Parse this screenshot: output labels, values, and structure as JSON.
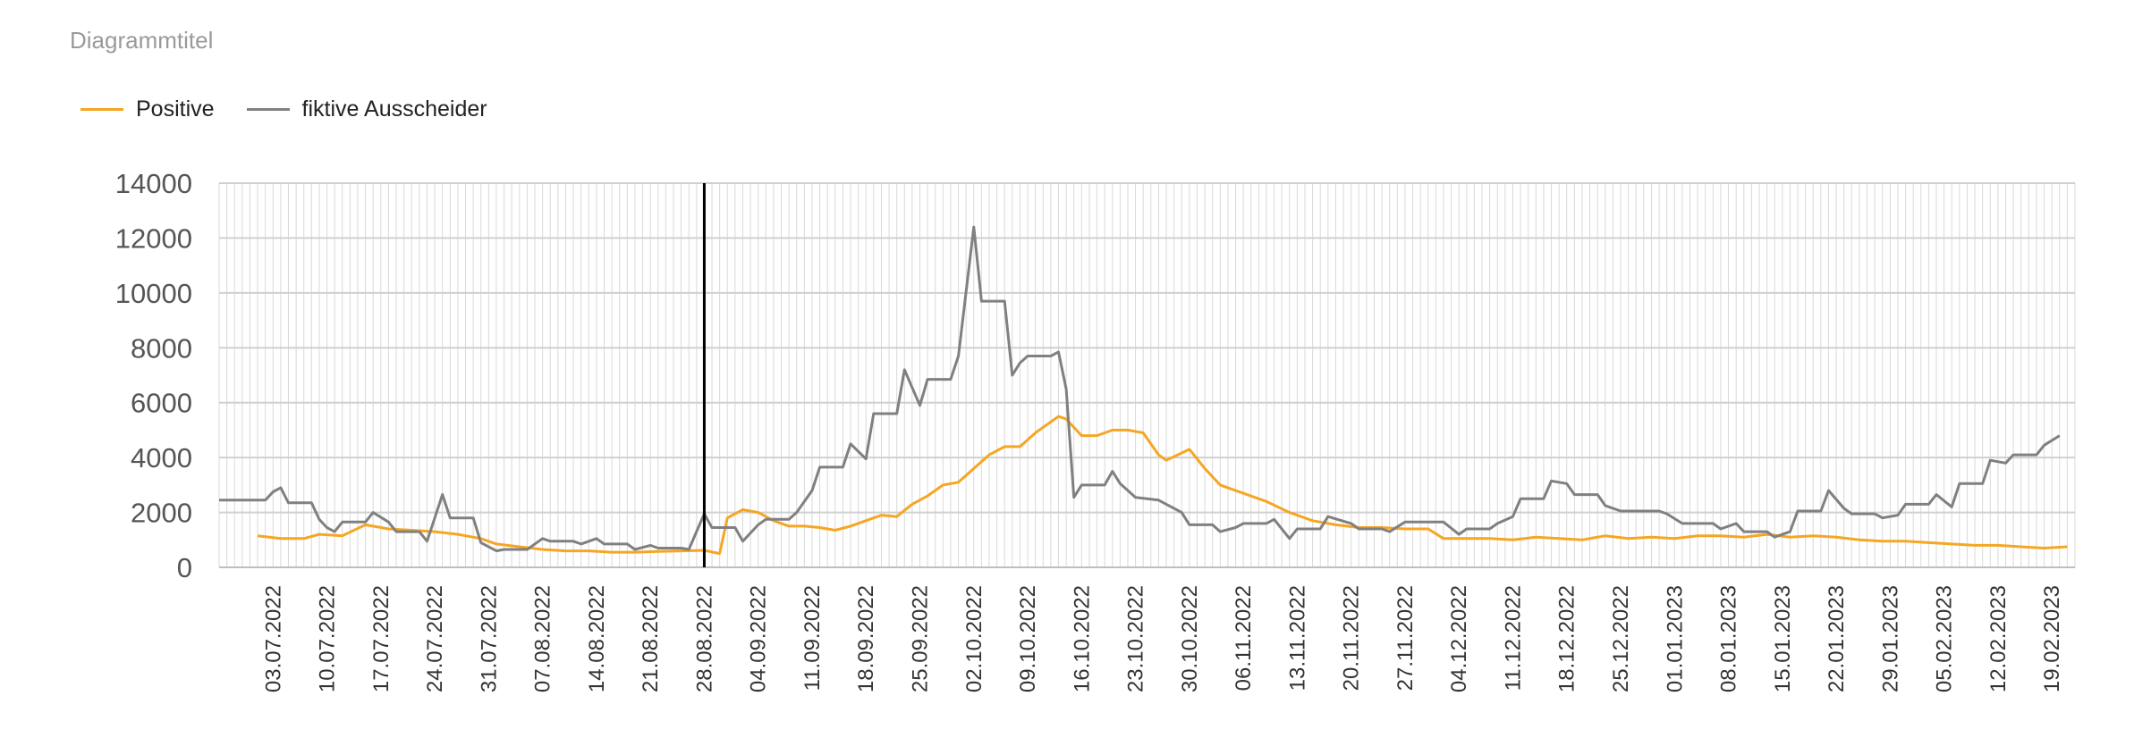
{
  "chart_data": {
    "type": "line",
    "title": "Diagrammtitel",
    "xlabel": "",
    "ylabel": "",
    "ylim": [
      0,
      14000
    ],
    "yticks": [
      0,
      2000,
      4000,
      6000,
      8000,
      10000,
      12000,
      14000
    ],
    "x_start": "2022-06-26",
    "x_end": "2023-02-22",
    "grid": true,
    "legend_position": "top-left",
    "tick_labels": [
      "03.07.2022",
      "10.07.2022",
      "17.07.2022",
      "24.07.2022",
      "31.07.2022",
      "07.08.2022",
      "14.08.2022",
      "21.08.2022",
      "28.08.2022",
      "04.09.2022",
      "11.09.2022",
      "18.09.2022",
      "25.09.2022",
      "02.10.2022",
      "09.10.2022",
      "16.10.2022",
      "23.10.2022",
      "30.10.2022",
      "06.11.2022",
      "13.11.2022",
      "20.11.2022",
      "27.11.2022",
      "04.12.2022",
      "11.12.2022",
      "18.12.2022",
      "25.12.2022",
      "01.01.2023",
      "08.01.2023",
      "15.01.2023",
      "22.01.2023",
      "29.01.2023",
      "05.02.2023",
      "12.02.2023",
      "19.02.2023"
    ],
    "marker_line_date": "2022-08-28",
    "series": [
      {
        "name": "Positive",
        "color": "#F5A623",
        "points": [
          [
            "2022-07-01",
            1150
          ],
          [
            "2022-07-04",
            1050
          ],
          [
            "2022-07-07",
            1050
          ],
          [
            "2022-07-09",
            1200
          ],
          [
            "2022-07-12",
            1150
          ],
          [
            "2022-07-15",
            1550
          ],
          [
            "2022-07-18",
            1400
          ],
          [
            "2022-07-21",
            1350
          ],
          [
            "2022-07-24",
            1300
          ],
          [
            "2022-07-27",
            1200
          ],
          [
            "2022-07-30",
            1050
          ],
          [
            "2022-08-01",
            850
          ],
          [
            "2022-08-04",
            750
          ],
          [
            "2022-08-07",
            650
          ],
          [
            "2022-08-10",
            600
          ],
          [
            "2022-08-13",
            600
          ],
          [
            "2022-08-16",
            550
          ],
          [
            "2022-08-19",
            550
          ],
          [
            "2022-08-22",
            580
          ],
          [
            "2022-08-25",
            600
          ],
          [
            "2022-08-28",
            620
          ],
          [
            "2022-08-30",
            500
          ],
          [
            "2022-08-31",
            1800
          ],
          [
            "2022-09-02",
            2100
          ],
          [
            "2022-09-04",
            2000
          ],
          [
            "2022-09-06",
            1700
          ],
          [
            "2022-09-08",
            1500
          ],
          [
            "2022-09-10",
            1500
          ],
          [
            "2022-09-12",
            1450
          ],
          [
            "2022-09-14",
            1350
          ],
          [
            "2022-09-16",
            1500
          ],
          [
            "2022-09-18",
            1700
          ],
          [
            "2022-09-20",
            1900
          ],
          [
            "2022-09-22",
            1850
          ],
          [
            "2022-09-24",
            2300
          ],
          [
            "2022-09-26",
            2600
          ],
          [
            "2022-09-28",
            3000
          ],
          [
            "2022-09-30",
            3100
          ],
          [
            "2022-10-02",
            3600
          ],
          [
            "2022-10-04",
            4100
          ],
          [
            "2022-10-06",
            4400
          ],
          [
            "2022-10-08",
            4400
          ],
          [
            "2022-10-10",
            4900
          ],
          [
            "2022-10-12",
            5300
          ],
          [
            "2022-10-13",
            5500
          ],
          [
            "2022-10-14",
            5400
          ],
          [
            "2022-10-16",
            4800
          ],
          [
            "2022-10-18",
            4800
          ],
          [
            "2022-10-20",
            5000
          ],
          [
            "2022-10-22",
            5000
          ],
          [
            "2022-10-24",
            4900
          ],
          [
            "2022-10-26",
            4100
          ],
          [
            "2022-10-27",
            3900
          ],
          [
            "2022-10-30",
            4300
          ],
          [
            "2022-11-01",
            3600
          ],
          [
            "2022-11-03",
            3000
          ],
          [
            "2022-11-06",
            2700
          ],
          [
            "2022-11-09",
            2400
          ],
          [
            "2022-11-12",
            2000
          ],
          [
            "2022-11-15",
            1700
          ],
          [
            "2022-11-18",
            1550
          ],
          [
            "2022-11-21",
            1450
          ],
          [
            "2022-11-24",
            1450
          ],
          [
            "2022-11-27",
            1400
          ],
          [
            "2022-11-30",
            1400
          ],
          [
            "2022-12-02",
            1050
          ],
          [
            "2022-12-05",
            1050
          ],
          [
            "2022-12-08",
            1050
          ],
          [
            "2022-12-11",
            1000
          ],
          [
            "2022-12-14",
            1100
          ],
          [
            "2022-12-17",
            1050
          ],
          [
            "2022-12-20",
            1000
          ],
          [
            "2022-12-23",
            1150
          ],
          [
            "2022-12-26",
            1050
          ],
          [
            "2022-12-29",
            1100
          ],
          [
            "2023-01-01",
            1050
          ],
          [
            "2023-01-04",
            1150
          ],
          [
            "2023-01-07",
            1150
          ],
          [
            "2023-01-10",
            1100
          ],
          [
            "2023-01-13",
            1200
          ],
          [
            "2023-01-16",
            1100
          ],
          [
            "2023-01-19",
            1150
          ],
          [
            "2023-01-22",
            1100
          ],
          [
            "2023-01-25",
            1000
          ],
          [
            "2023-01-28",
            950
          ],
          [
            "2023-01-31",
            950
          ],
          [
            "2023-02-03",
            900
          ],
          [
            "2023-02-06",
            850
          ],
          [
            "2023-02-09",
            800
          ],
          [
            "2023-02-12",
            800
          ],
          [
            "2023-02-15",
            750
          ],
          [
            "2023-02-18",
            700
          ],
          [
            "2023-02-21",
            750
          ]
        ]
      },
      {
        "name": "fiktive  Ausscheider",
        "color": "#808080",
        "points": [
          [
            "2022-06-26",
            2450
          ],
          [
            "2022-07-02",
            2450
          ],
          [
            "2022-07-03",
            2750
          ],
          [
            "2022-07-04",
            2900
          ],
          [
            "2022-07-05",
            2350
          ],
          [
            "2022-07-08",
            2350
          ],
          [
            "2022-07-09",
            1750
          ],
          [
            "2022-07-10",
            1450
          ],
          [
            "2022-07-11",
            1300
          ],
          [
            "2022-07-12",
            1650
          ],
          [
            "2022-07-15",
            1650
          ],
          [
            "2022-07-16",
            2000
          ],
          [
            "2022-07-18",
            1650
          ],
          [
            "2022-07-19",
            1300
          ],
          [
            "2022-07-22",
            1300
          ],
          [
            "2022-07-23",
            950
          ],
          [
            "2022-07-24",
            1800
          ],
          [
            "2022-07-25",
            2650
          ],
          [
            "2022-07-26",
            1800
          ],
          [
            "2022-07-29",
            1800
          ],
          [
            "2022-07-30",
            900
          ],
          [
            "2022-08-01",
            600
          ],
          [
            "2022-08-02",
            650
          ],
          [
            "2022-08-05",
            650
          ],
          [
            "2022-08-07",
            1050
          ],
          [
            "2022-08-08",
            950
          ],
          [
            "2022-08-11",
            950
          ],
          [
            "2022-08-12",
            850
          ],
          [
            "2022-08-14",
            1050
          ],
          [
            "2022-08-15",
            850
          ],
          [
            "2022-08-18",
            850
          ],
          [
            "2022-08-19",
            650
          ],
          [
            "2022-08-21",
            800
          ],
          [
            "2022-08-22",
            700
          ],
          [
            "2022-08-25",
            700
          ],
          [
            "2022-08-26",
            650
          ],
          [
            "2022-08-28",
            1950
          ],
          [
            "2022-08-29",
            1450
          ],
          [
            "2022-09-01",
            1450
          ],
          [
            "2022-09-02",
            950
          ],
          [
            "2022-09-04",
            1550
          ],
          [
            "2022-09-05",
            1750
          ],
          [
            "2022-09-08",
            1750
          ],
          [
            "2022-09-09",
            2000
          ],
          [
            "2022-09-11",
            2800
          ],
          [
            "2022-09-12",
            3650
          ],
          [
            "2022-09-15",
            3650
          ],
          [
            "2022-09-16",
            4500
          ],
          [
            "2022-09-18",
            3950
          ],
          [
            "2022-09-19",
            5600
          ],
          [
            "2022-09-22",
            5600
          ],
          [
            "2022-09-23",
            7200
          ],
          [
            "2022-09-25",
            5900
          ],
          [
            "2022-09-26",
            6850
          ],
          [
            "2022-09-29",
            6850
          ],
          [
            "2022-09-30",
            7700
          ],
          [
            "2022-10-02",
            12400
          ],
          [
            "2022-10-03",
            9700
          ],
          [
            "2022-10-06",
            9700
          ],
          [
            "2022-10-07",
            7000
          ],
          [
            "2022-10-08",
            7450
          ],
          [
            "2022-10-09",
            7700
          ],
          [
            "2022-10-12",
            7700
          ],
          [
            "2022-10-13",
            7850
          ],
          [
            "2022-10-14",
            6500
          ],
          [
            "2022-10-15",
            2550
          ],
          [
            "2022-10-16",
            3000
          ],
          [
            "2022-10-19",
            3000
          ],
          [
            "2022-10-20",
            3500
          ],
          [
            "2022-10-21",
            3050
          ],
          [
            "2022-10-23",
            2550
          ],
          [
            "2022-10-26",
            2450
          ],
          [
            "2022-10-27",
            2300
          ],
          [
            "2022-10-29",
            2000
          ],
          [
            "2022-10-30",
            1550
          ],
          [
            "2022-11-02",
            1550
          ],
          [
            "2022-11-03",
            1300
          ],
          [
            "2022-11-05",
            1450
          ],
          [
            "2022-11-06",
            1600
          ],
          [
            "2022-11-09",
            1600
          ],
          [
            "2022-11-10",
            1750
          ],
          [
            "2022-11-12",
            1050
          ],
          [
            "2022-11-13",
            1400
          ],
          [
            "2022-11-16",
            1400
          ],
          [
            "2022-11-17",
            1850
          ],
          [
            "2022-11-20",
            1600
          ],
          [
            "2022-11-21",
            1400
          ],
          [
            "2022-11-24",
            1400
          ],
          [
            "2022-11-25",
            1300
          ],
          [
            "2022-11-27",
            1650
          ],
          [
            "2022-12-02",
            1650
          ],
          [
            "2022-12-04",
            1200
          ],
          [
            "2022-12-05",
            1400
          ],
          [
            "2022-12-08",
            1400
          ],
          [
            "2022-12-09",
            1600
          ],
          [
            "2022-12-11",
            1850
          ],
          [
            "2022-12-12",
            2500
          ],
          [
            "2022-12-15",
            2500
          ],
          [
            "2022-12-16",
            3150
          ],
          [
            "2022-12-18",
            3050
          ],
          [
            "2022-12-19",
            2650
          ],
          [
            "2022-12-22",
            2650
          ],
          [
            "2022-12-23",
            2250
          ],
          [
            "2022-12-25",
            2050
          ],
          [
            "2022-12-30",
            2050
          ],
          [
            "2022-12-31",
            1950
          ],
          [
            "2023-01-02",
            1600
          ],
          [
            "2023-01-06",
            1600
          ],
          [
            "2023-01-07",
            1400
          ],
          [
            "2023-01-09",
            1600
          ],
          [
            "2023-01-10",
            1300
          ],
          [
            "2023-01-13",
            1300
          ],
          [
            "2023-01-14",
            1100
          ],
          [
            "2023-01-16",
            1300
          ],
          [
            "2023-01-17",
            2050
          ],
          [
            "2023-01-20",
            2050
          ],
          [
            "2023-01-21",
            2800
          ],
          [
            "2023-01-23",
            2150
          ],
          [
            "2023-01-24",
            1950
          ],
          [
            "2023-01-27",
            1950
          ],
          [
            "2023-01-28",
            1800
          ],
          [
            "2023-01-30",
            1900
          ],
          [
            "2023-01-31",
            2300
          ],
          [
            "2023-02-03",
            2300
          ],
          [
            "2023-02-04",
            2650
          ],
          [
            "2023-02-06",
            2200
          ],
          [
            "2023-02-07",
            3050
          ],
          [
            "2023-02-10",
            3050
          ],
          [
            "2023-02-11",
            3900
          ],
          [
            "2023-02-13",
            3800
          ],
          [
            "2023-02-14",
            4100
          ],
          [
            "2023-02-17",
            4100
          ],
          [
            "2023-02-18",
            4450
          ],
          [
            "2023-02-20",
            4800
          ]
        ]
      }
    ]
  }
}
